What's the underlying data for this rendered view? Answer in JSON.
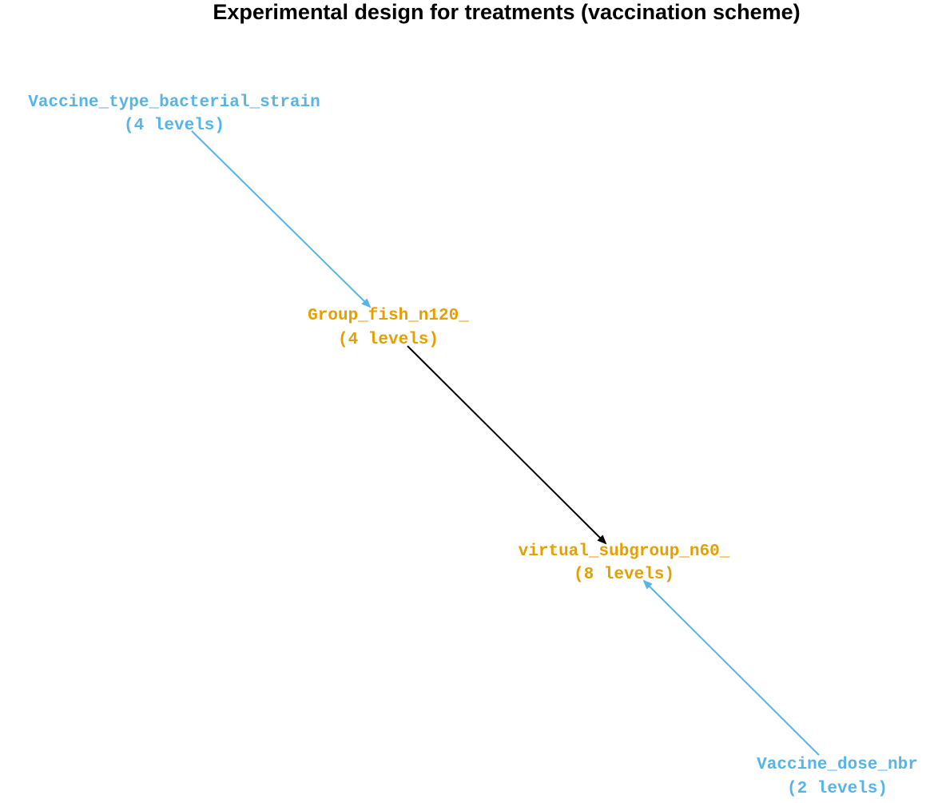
{
  "title": "Experimental design for treatments (vaccination scheme)",
  "colors": {
    "factor": "#56B4E9",
    "unit": "#E69F00",
    "edge_nested": "#000000"
  },
  "nodes": [
    {
      "id": "vaccine_type",
      "name": "Vaccine_type_bacterial_strain",
      "levels": "(4 levels)",
      "role": "factor"
    },
    {
      "id": "group_fish",
      "name": "Group_fish_n120_",
      "levels": "(4 levels)",
      "role": "unit"
    },
    {
      "id": "virtual_subgroup",
      "name": "virtual_subgroup_n60_",
      "levels": "(8 levels)",
      "role": "unit"
    },
    {
      "id": "vaccine_dose",
      "name": "Vaccine_dose_nbr",
      "levels": "(2 levels)",
      "role": "factor"
    }
  ],
  "edges": [
    {
      "from": "vaccine_type",
      "to": "group_fish"
    },
    {
      "from": "group_fish",
      "to": "virtual_subgroup"
    },
    {
      "from": "vaccine_dose",
      "to": "virtual_subgroup"
    }
  ]
}
